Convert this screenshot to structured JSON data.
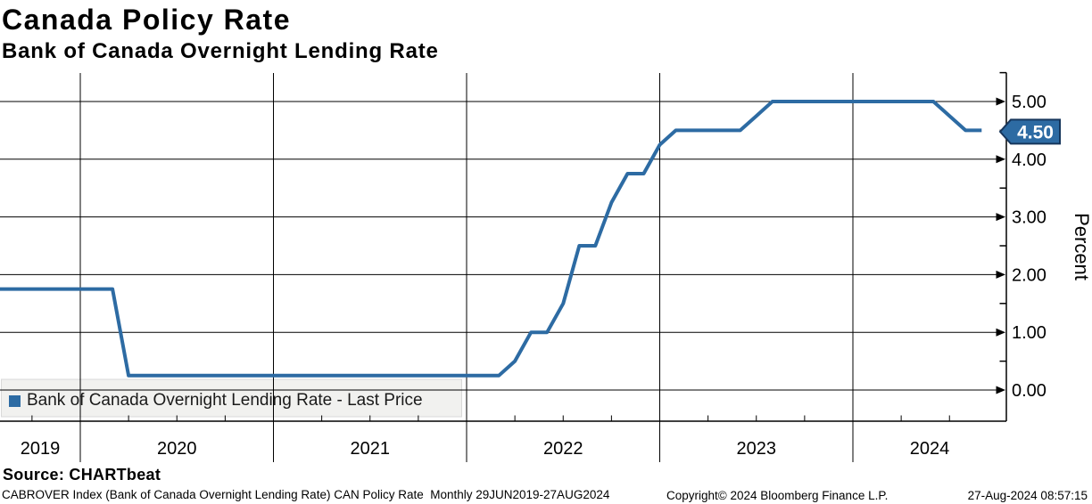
{
  "header": {
    "title": "Canada Policy Rate",
    "subtitle": "Bank of Canada Overnight Lending Rate"
  },
  "legend": {
    "label": "Bank of Canada Overnight Lending Rate - Last Price",
    "swatch_color": "#2d6ba3"
  },
  "last_price_tag": {
    "label": "4.50",
    "value": 4.5,
    "fill": "#2d6ba3",
    "border": "#16365c",
    "text_color": "#ffffff"
  },
  "footer": {
    "source": "Source: CHARTbeat",
    "description": "CABROVER Index (Bank of Canada Overnight Lending Rate) CAN Policy Rate  Monthly 29JUN2019-27AUG2024",
    "copyright": "Copyright© 2024 Bloomberg Finance L.P.",
    "timestamp": "27-Aug-2024 08:57:15"
  },
  "chart_data": {
    "type": "line",
    "title": "Canada Policy Rate",
    "subtitle": "Bank of Canada Overnight Lending Rate",
    "ylabel": "Percent",
    "ylim": [
      -0.55,
      5.45
    ],
    "frequency": "Monthly",
    "x_range_label": "29JUN2019-27AUG2024",
    "grid": true,
    "legend_position": "bottom-left",
    "axis_color": "#000000",
    "y_ticks": [
      {
        "value": 0,
        "label": "0.00"
      },
      {
        "value": 1,
        "label": "1.00"
      },
      {
        "value": 2,
        "label": "2.00"
      },
      {
        "value": 3,
        "label": "3.00"
      },
      {
        "value": 4,
        "label": "4.00"
      },
      {
        "value": 5,
        "label": "5.00"
      }
    ],
    "y_minor_ticks": [
      0.5,
      1.5,
      2.5,
      3.5,
      4.5,
      5.5
    ],
    "x_year_labels": [
      "2019",
      "2020",
      "2021",
      "2022",
      "2023",
      "2024"
    ],
    "series": [
      {
        "name": "Bank of Canada Overnight Lending Rate - Last Price",
        "color": "#2d6ba3",
        "last_value": 4.5,
        "points": [
          [
            "2019-06",
            1.75
          ],
          [
            "2019-07",
            1.75
          ],
          [
            "2019-08",
            1.75
          ],
          [
            "2019-09",
            1.75
          ],
          [
            "2019-10",
            1.75
          ],
          [
            "2019-11",
            1.75
          ],
          [
            "2019-12",
            1.75
          ],
          [
            "2020-01",
            1.75
          ],
          [
            "2020-02",
            1.75
          ],
          [
            "2020-03",
            0.25
          ],
          [
            "2020-04",
            0.25
          ],
          [
            "2020-05",
            0.25
          ],
          [
            "2020-06",
            0.25
          ],
          [
            "2020-07",
            0.25
          ],
          [
            "2020-08",
            0.25
          ],
          [
            "2020-09",
            0.25
          ],
          [
            "2020-10",
            0.25
          ],
          [
            "2020-11",
            0.25
          ],
          [
            "2020-12",
            0.25
          ],
          [
            "2021-01",
            0.25
          ],
          [
            "2021-02",
            0.25
          ],
          [
            "2021-03",
            0.25
          ],
          [
            "2021-04",
            0.25
          ],
          [
            "2021-05",
            0.25
          ],
          [
            "2021-06",
            0.25
          ],
          [
            "2021-07",
            0.25
          ],
          [
            "2021-08",
            0.25
          ],
          [
            "2021-09",
            0.25
          ],
          [
            "2021-10",
            0.25
          ],
          [
            "2021-11",
            0.25
          ],
          [
            "2021-12",
            0.25
          ],
          [
            "2022-01",
            0.25
          ],
          [
            "2022-02",
            0.25
          ],
          [
            "2022-03",
            0.5
          ],
          [
            "2022-04",
            1.0
          ],
          [
            "2022-05",
            1.0
          ],
          [
            "2022-06",
            1.5
          ],
          [
            "2022-07",
            2.5
          ],
          [
            "2022-08",
            2.5
          ],
          [
            "2022-09",
            3.25
          ],
          [
            "2022-10",
            3.75
          ],
          [
            "2022-11",
            3.75
          ],
          [
            "2022-12",
            4.25
          ],
          [
            "2023-01",
            4.5
          ],
          [
            "2023-02",
            4.5
          ],
          [
            "2023-03",
            4.5
          ],
          [
            "2023-04",
            4.5
          ],
          [
            "2023-05",
            4.5
          ],
          [
            "2023-06",
            4.75
          ],
          [
            "2023-07",
            5.0
          ],
          [
            "2023-08",
            5.0
          ],
          [
            "2023-09",
            5.0
          ],
          [
            "2023-10",
            5.0
          ],
          [
            "2023-11",
            5.0
          ],
          [
            "2023-12",
            5.0
          ],
          [
            "2024-01",
            5.0
          ],
          [
            "2024-02",
            5.0
          ],
          [
            "2024-03",
            5.0
          ],
          [
            "2024-04",
            5.0
          ],
          [
            "2024-05",
            5.0
          ],
          [
            "2024-06",
            4.75
          ],
          [
            "2024-07",
            4.5
          ],
          [
            "2024-08",
            4.5
          ]
        ]
      }
    ]
  }
}
